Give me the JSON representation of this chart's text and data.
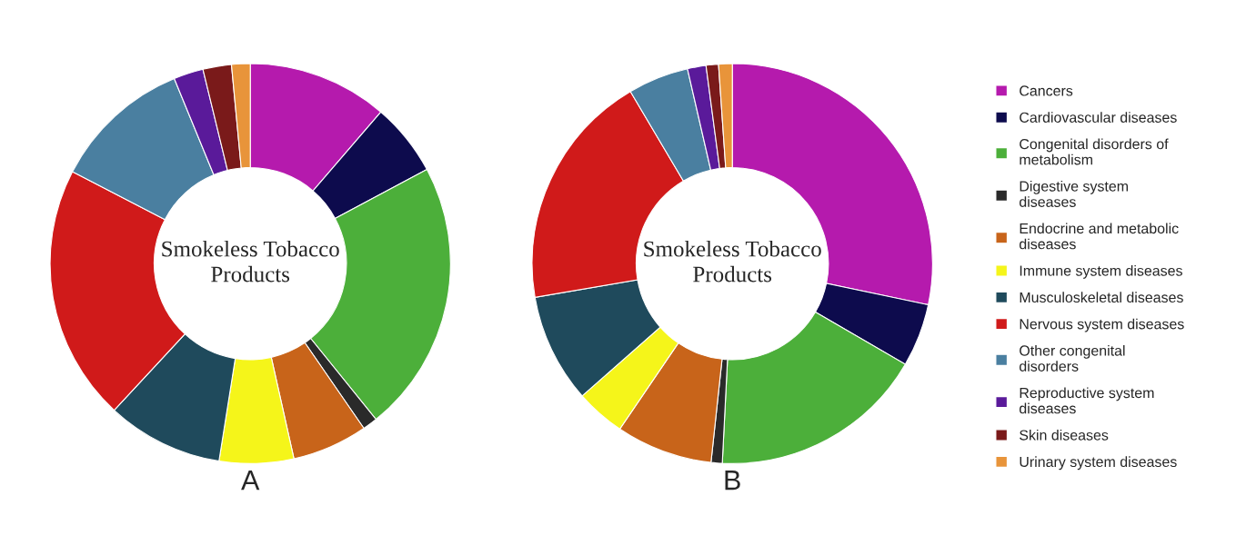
{
  "chart_data": [
    {
      "type": "donut",
      "title": "Smokeless Tobacco Products",
      "annotations": [
        "A"
      ],
      "legend": "right",
      "categories": [
        "Cancers",
        "Cardiovascular diseases",
        "Congenital disorders of metabolism",
        "Digestive system diseases",
        "Endocrine and metabolic diseases",
        "Immune system diseases",
        "Musculoskeletal diseases",
        "Nervous system diseases",
        "Other congenital disorders",
        "Reproductive system diseases",
        "Skin diseases",
        "Urinary system diseases"
      ],
      "values": [
        11.3,
        5.9,
        22,
        1.2,
        6.1,
        6,
        9.4,
        20.7,
        11.2,
        2.4,
        2.3,
        1.5
      ],
      "colors": [
        "#b51aad",
        "#0d0b4d",
        "#4caf3a",
        "#2a2a2a",
        "#c8641a",
        "#f5f51a",
        "#1f4a5c",
        "#d01a1a",
        "#4a7fa0",
        "#5a1a9a",
        "#7a1a1a",
        "#e8943a"
      ]
    },
    {
      "type": "donut",
      "title": "Smokeless Tobacco Products",
      "annotations": [
        "B"
      ],
      "legend": false,
      "categories": [
        null,
        null,
        null,
        null,
        null,
        null,
        null,
        null,
        null,
        null,
        null,
        null
      ],
      "values": [
        28.3,
        5.1,
        17.4,
        0.9,
        7.8,
        4,
        8.8,
        19.2,
        4.9,
        1.5,
        1,
        1.1
      ],
      "colors": [
        "#b51aad",
        "#0d0b4d",
        "#4caf3a",
        "#2a2a2a",
        "#c8641a",
        "#f5f51a",
        "#1f4a5c",
        "#d01a1a",
        "#4a7fa0",
        "#5a1a9a",
        "#7a1a1a",
        "#e8943a"
      ]
    }
  ]
}
